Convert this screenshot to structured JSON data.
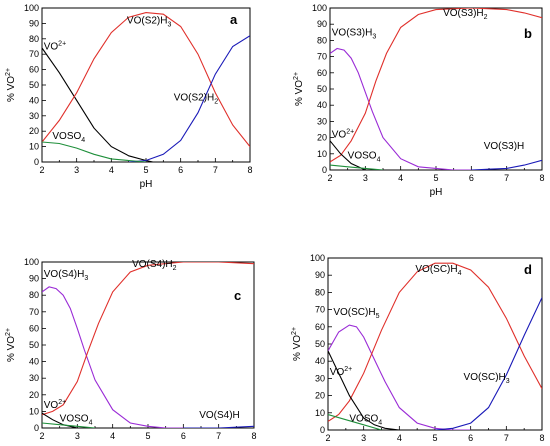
{
  "colors": {
    "black": "#000000",
    "red": "#e0302b",
    "blue": "#1a1ab8",
    "green": "#1e8f3a",
    "purple": "#9a2bd6",
    "teal": "#18706a"
  },
  "chart_data": [
    {
      "type": "line",
      "panel": "a",
      "xlabel": "pH",
      "ylabel": "% VO2+",
      "xlim": [
        2,
        8
      ],
      "ylim": [
        0,
        100
      ],
      "xticks": [
        2,
        3,
        4,
        5,
        6,
        7,
        8
      ],
      "yticks": [
        0,
        10,
        20,
        30,
        40,
        50,
        60,
        70,
        80,
        90,
        100
      ],
      "series": [
        {
          "name": "VO2+",
          "label_base": "VO",
          "label_sup": "2+",
          "color": "black",
          "x": [
            2,
            2.5,
            3,
            3.5,
            4,
            4.5,
            5,
            5.2
          ],
          "y": [
            74,
            58,
            40,
            22,
            10,
            4,
            1,
            0
          ]
        },
        {
          "name": "VO(S2)H3",
          "label_base": "VO(S2)H",
          "label_sub": "3",
          "color": "red",
          "x": [
            2,
            2.5,
            3,
            3.5,
            4,
            4.5,
            5,
            5.5,
            6,
            6.5,
            7,
            7.5,
            8
          ],
          "y": [
            13,
            27,
            45,
            67,
            84,
            94,
            97,
            96,
            88,
            70,
            45,
            24,
            10
          ]
        },
        {
          "name": "VO(S2)H2",
          "label_base": "VO(S2)H",
          "label_sub": "2",
          "color": "blue",
          "x": [
            4.5,
            5,
            5.5,
            6,
            6.5,
            7,
            7.5,
            8
          ],
          "y": [
            0,
            1,
            5,
            14,
            32,
            57,
            75,
            82
          ]
        },
        {
          "name": "VOSO4",
          "label_base": "VOSO",
          "label_sub": "4",
          "color": "green",
          "x": [
            2,
            2.5,
            3,
            3.5,
            4,
            4.5,
            5
          ],
          "y": [
            13,
            12,
            9,
            5,
            2,
            1,
            0
          ]
        }
      ],
      "labels": [
        {
          "series": 0,
          "x": 2.05,
          "y": 73
        },
        {
          "series": 1,
          "x": 4.45,
          "y": 90
        },
        {
          "series": 2,
          "x": 5.8,
          "y": 40
        },
        {
          "series": 3,
          "x": 2.3,
          "y": 15
        }
      ]
    },
    {
      "type": "line",
      "panel": "b",
      "xlabel": "pH",
      "ylabel": "% VO2+",
      "xlim": [
        2,
        8
      ],
      "ylim": [
        0,
        100
      ],
      "xticks": [
        2,
        3,
        4,
        5,
        6,
        7,
        8
      ],
      "yticks": [
        0,
        10,
        20,
        30,
        40,
        50,
        60,
        70,
        80,
        90,
        100
      ],
      "series": [
        {
          "name": "VO(S3)H3",
          "label_base": "VO(S3)H",
          "label_sub": "3",
          "color": "purple",
          "x": [
            2,
            2.2,
            2.4,
            2.6,
            2.8,
            3,
            3.2,
            3.5,
            4,
            4.5,
            5,
            5.5,
            6
          ],
          "y": [
            72,
            75,
            74,
            69,
            60,
            48,
            36,
            20,
            7,
            2,
            1,
            0,
            0
          ]
        },
        {
          "name": "VO(S3)H2",
          "label_base": "VO(S3)H",
          "label_sub": "2",
          "color": "red",
          "x": [
            2,
            2.3,
            2.6,
            3,
            3.3,
            3.6,
            4,
            4.5,
            5,
            6,
            7,
            7.5,
            8
          ],
          "y": [
            5,
            9,
            18,
            35,
            55,
            72,
            88,
            96,
            99,
            100,
            99,
            97,
            94
          ]
        },
        {
          "name": "VO2+",
          "label_base": "VO",
          "label_sup": "2+",
          "color": "black",
          "x": [
            2,
            2.3,
            2.6,
            3
          ],
          "y": [
            18,
            10,
            4,
            0
          ]
        },
        {
          "name": "VOSO4",
          "label_base": "VOSO",
          "label_sub": "4",
          "color": "green",
          "x": [
            2,
            2.5,
            3,
            3.5
          ],
          "y": [
            3,
            2,
            1,
            0
          ]
        },
        {
          "name": "VO(S3)H",
          "label_base": "VO(S3)H",
          "color": "blue",
          "x": [
            6,
            6.5,
            7,
            7.5,
            8
          ],
          "y": [
            0,
            0.5,
            1,
            3,
            6
          ]
        }
      ],
      "labels": [
        {
          "series": 0,
          "x": 2.05,
          "y": 83
        },
        {
          "series": 1,
          "x": 5.2,
          "y": 95
        },
        {
          "series": 2,
          "x": 2.05,
          "y": 20
        },
        {
          "series": 3,
          "x": 2.5,
          "y": 7
        },
        {
          "series": 4,
          "x": 6.35,
          "y": 13
        }
      ]
    },
    {
      "type": "line",
      "panel": "c",
      "xlabel": "pH",
      "ylabel": "% VO2+",
      "xlim": [
        2,
        8
      ],
      "ylim": [
        0,
        100
      ],
      "xticks": [
        2,
        3,
        4,
        5,
        6,
        7,
        8
      ],
      "yticks": [
        0,
        10,
        20,
        30,
        40,
        50,
        60,
        70,
        80,
        90,
        100
      ],
      "series": [
        {
          "name": "VO(S4)H3",
          "label_base": "VO(S4)H",
          "label_sub": "3",
          "color": "purple",
          "x": [
            2,
            2.2,
            2.4,
            2.6,
            2.8,
            3,
            3.2,
            3.5,
            4,
            4.5,
            5,
            5.5,
            6
          ],
          "y": [
            82,
            85,
            84,
            80,
            72,
            60,
            47,
            29,
            11,
            3,
            1,
            0,
            0
          ]
        },
        {
          "name": "VO(S4)H2",
          "label_base": "VO(S4)H",
          "label_sub": "2",
          "color": "red",
          "x": [
            2,
            2.3,
            2.6,
            3,
            3.3,
            3.6,
            4,
            4.5,
            5,
            6,
            7,
            8
          ],
          "y": [
            8,
            10,
            14,
            28,
            46,
            63,
            82,
            94,
            98,
            100,
            100,
            99
          ]
        },
        {
          "name": "VO2+",
          "label_base": "VO",
          "label_sup": "2+",
          "color": "black",
          "x": [
            2,
            2.3,
            2.6,
            3
          ],
          "y": [
            9,
            5,
            2,
            0
          ]
        },
        {
          "name": "VOSO4",
          "label_base": "VOSO",
          "label_sub": "4",
          "color": "green",
          "x": [
            2,
            2.5,
            3,
            3.5
          ],
          "y": [
            3,
            2,
            1,
            0
          ]
        },
        {
          "name": "VO(S4)H",
          "label_base": "VO(S4)H",
          "color": "blue",
          "x": [
            6,
            7,
            8
          ],
          "y": [
            0,
            0,
            1
          ]
        }
      ],
      "labels": [
        {
          "series": 0,
          "x": 2.05,
          "y": 91
        },
        {
          "series": 1,
          "x": 4.55,
          "y": 97
        },
        {
          "series": 2,
          "x": 2.05,
          "y": 12
        },
        {
          "series": 3,
          "x": 2.5,
          "y": 4
        },
        {
          "series": 4,
          "x": 6.45,
          "y": 6
        }
      ]
    },
    {
      "type": "line",
      "panel": "d",
      "xlabel": "pH",
      "ylabel": "% VO2+",
      "xlim": [
        2,
        8
      ],
      "ylim": [
        0,
        100
      ],
      "xticks": [
        2,
        3,
        4,
        5,
        6,
        7,
        8
      ],
      "yticks": [
        0,
        10,
        20,
        30,
        40,
        50,
        60,
        70,
        80,
        90,
        100
      ],
      "series": [
        {
          "name": "VO(SC)H5",
          "label_base": "VO(SC)H",
          "label_sub": "5",
          "color": "purple",
          "x": [
            2,
            2.3,
            2.6,
            2.8,
            3,
            3.3,
            3.6,
            4,
            4.5,
            5,
            5.5,
            6
          ],
          "y": [
            46,
            57,
            61,
            60,
            54,
            41,
            28,
            13,
            4,
            1,
            0,
            0
          ]
        },
        {
          "name": "VO(SC)H4",
          "label_base": "VO(SC)H",
          "label_sub": "4",
          "color": "red",
          "x": [
            2,
            2.3,
            2.6,
            3,
            3.5,
            4,
            4.5,
            5,
            5.5,
            6,
            6.5,
            7,
            7.5,
            8
          ],
          "y": [
            5,
            9,
            17,
            33,
            58,
            80,
            92,
            97,
            97,
            93,
            83,
            65,
            43,
            24
          ]
        },
        {
          "name": "VO2+",
          "label_base": "VO",
          "label_sup": "2+",
          "color": "black",
          "x": [
            2,
            2.3,
            2.6,
            3,
            3.3,
            3.6,
            4
          ],
          "y": [
            46,
            33,
            20,
            7,
            3,
            1,
            0
          ]
        },
        {
          "name": "VOSO4",
          "label_base": "VOSO",
          "label_sub": "4",
          "color": "green",
          "x": [
            2,
            2.5,
            3,
            3.5
          ],
          "y": [
            9,
            6,
            3,
            0
          ]
        },
        {
          "name": "VO(SC)H3",
          "label_base": "VO(SC)H",
          "label_sub": "3",
          "color": "blue",
          "x": [
            5,
            5.5,
            6,
            6.5,
            7,
            7.5,
            8
          ],
          "y": [
            0,
            1,
            4,
            13,
            32,
            55,
            77
          ]
        }
      ],
      "labels": [
        {
          "series": 0,
          "x": 2.15,
          "y": 67
        },
        {
          "series": 1,
          "x": 4.45,
          "y": 92
        },
        {
          "series": 2,
          "x": 2.05,
          "y": 32
        },
        {
          "series": 3,
          "x": 2.6,
          "y": 5
        },
        {
          "series": 4,
          "x": 5.8,
          "y": 29
        }
      ]
    }
  ]
}
